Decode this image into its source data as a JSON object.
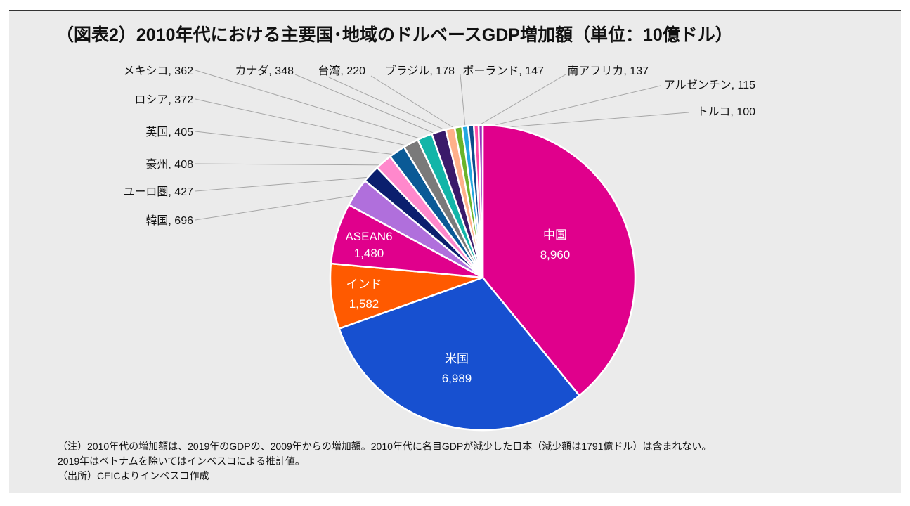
{
  "title": "（図表2）2010年代における主要国･地域のドルベースGDP増加額（単位：10億ドル）",
  "chart_data": {
    "type": "pie",
    "title": "（図表2）2010年代における主要国･地域のドルベースGDP増加額（単位：10億ドル）",
    "unit": "10億ドル",
    "slices": [
      {
        "label": "中国",
        "value": 8960,
        "display": "8,960",
        "color": "#e0008c"
      },
      {
        "label": "米国",
        "value": 6989,
        "display": "6,989",
        "color": "#1750d0"
      },
      {
        "label": "インド",
        "value": 1582,
        "display": "1,582",
        "color": "#ff5a00"
      },
      {
        "label": "ASEAN6",
        "value": 1480,
        "display": "1,480",
        "color": "#e0008c"
      },
      {
        "label": "韓国",
        "value": 696,
        "display": "696",
        "color": "#b06fdc"
      },
      {
        "label": "ユーロ圏",
        "value": 427,
        "display": "427",
        "color": "#0b1f6e"
      },
      {
        "label": "豪州",
        "value": 408,
        "display": "408",
        "color": "#ff88cc"
      },
      {
        "label": "英国",
        "value": 405,
        "display": "405",
        "color": "#0a5a96"
      },
      {
        "label": "ロシア",
        "value": 372,
        "display": "372",
        "color": "#7a7a7a"
      },
      {
        "label": "メキシコ",
        "value": 362,
        "display": "362",
        "color": "#13b5a8"
      },
      {
        "label": "カナダ",
        "value": 348,
        "display": "348",
        "color": "#3a1a6a"
      },
      {
        "label": "台湾",
        "value": 220,
        "display": "220",
        "color": "#ffb08a"
      },
      {
        "label": "ブラジル",
        "value": 178,
        "display": "178",
        "color": "#6ab42a"
      },
      {
        "label": "ポーランド",
        "value": 147,
        "display": "147",
        "color": "#21a8e0"
      },
      {
        "label": "南アフリカ",
        "value": 137,
        "display": "137",
        "color": "#0d4a8a"
      },
      {
        "label": "アルゼンチン",
        "value": 115,
        "display": "115",
        "color": "#ff4da6"
      },
      {
        "label": "トルコ",
        "value": 100,
        "display": "100",
        "color": "#9a30b8"
      }
    ]
  },
  "notes": [
    "（注）2010年代の増加額は、2019年のGDPの、2009年からの増加額。2010年代に名目GDPが減少した日本（減少額は1791億ドル）は含まれない。",
    "2019年はベトナムを除いてはインベスコによる推計値。",
    "（出所）CEICよりインベスコ作成"
  ]
}
